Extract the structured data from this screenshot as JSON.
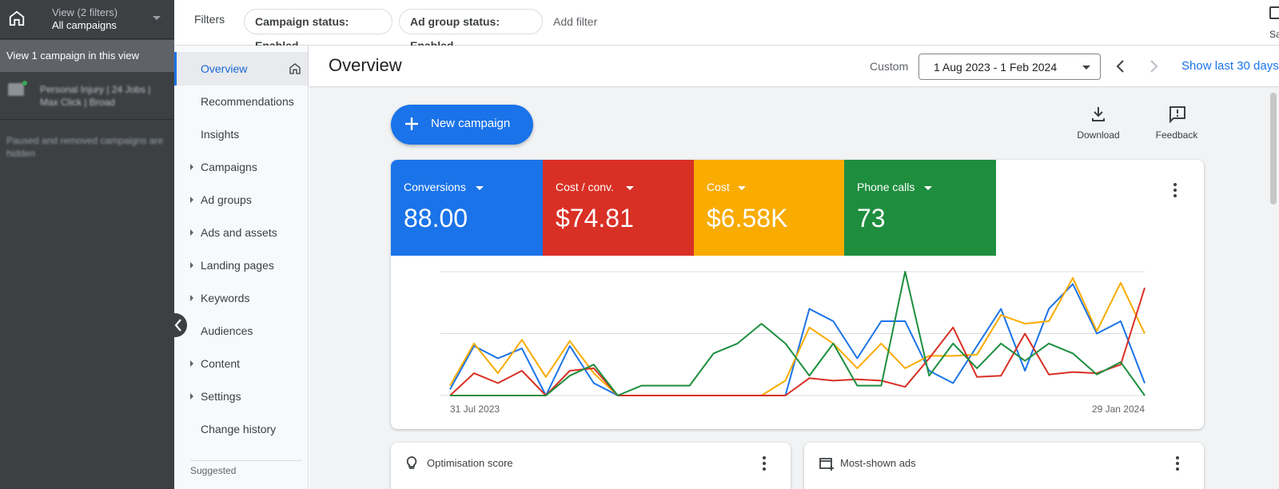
{
  "account": {
    "view_label": "View (2 filters)",
    "scope_label": "All campaigns",
    "banner": "View 1 campaign in this view",
    "campaign_name": "Personal Injury | 24 Jobs | Max Click | Broad",
    "hidden_note": "Paused and removed campaigns are hidden"
  },
  "filters": {
    "label": "Filters",
    "chips": [
      "Campaign status: Enabled",
      "Ad group status: Enabled"
    ],
    "add_filter": "Add filter",
    "save_label": "Sa"
  },
  "nav": {
    "items": [
      {
        "label": "Overview",
        "active": true,
        "expandable": false
      },
      {
        "label": "Recommendations",
        "active": false,
        "expandable": false
      },
      {
        "label": "Insights",
        "active": false,
        "expandable": false
      },
      {
        "label": "Campaigns",
        "active": false,
        "expandable": true
      },
      {
        "label": "Ad groups",
        "active": false,
        "expandable": true
      },
      {
        "label": "Ads and assets",
        "active": false,
        "expandable": true
      },
      {
        "label": "Landing pages",
        "active": false,
        "expandable": true
      },
      {
        "label": "Keywords",
        "active": false,
        "expandable": true
      },
      {
        "label": "Audiences",
        "active": false,
        "expandable": false
      },
      {
        "label": "Content",
        "active": false,
        "expandable": true
      },
      {
        "label": "Settings",
        "active": false,
        "expandable": true
      },
      {
        "label": "Change history",
        "active": false,
        "expandable": false
      }
    ],
    "suggested_label": "Suggested"
  },
  "header": {
    "title": "Overview",
    "range_type": "Custom",
    "date_range": "1 Aug 2023 - 1 Feb 2024",
    "show_last": "Show last 30 days"
  },
  "toolbar": {
    "new_campaign": "New campaign",
    "download": "Download",
    "feedback": "Feedback"
  },
  "metrics": [
    {
      "name": "Conversions",
      "value": "88.00",
      "color": "#1a73e8"
    },
    {
      "name": "Cost / conv.",
      "value": "$74.81",
      "color": "#d93025"
    },
    {
      "name": "Cost",
      "value": "$6.58K",
      "color": "#f9ab00"
    },
    {
      "name": "Phone calls",
      "value": "73",
      "color": "#1e8e3e"
    }
  ],
  "chart_data": {
    "type": "line",
    "x_start_label": "31 Jul 2023",
    "x_end_label": "29 Jan 2024",
    "ylim": [
      0,
      100
    ],
    "grid": true,
    "series": [
      {
        "color": "#1a73e8",
        "values": [
          5,
          40,
          30,
          38,
          0,
          40,
          10,
          0,
          0,
          0,
          0,
          0,
          0,
          0,
          0,
          70,
          60,
          30,
          60,
          60,
          20,
          10,
          40,
          70,
          20,
          70,
          90,
          50,
          60,
          10
        ]
      },
      {
        "color": "#f9ab00",
        "values": [
          8,
          42,
          18,
          45,
          15,
          44,
          18,
          0,
          0,
          0,
          0,
          0,
          0,
          0,
          12,
          55,
          42,
          22,
          42,
          22,
          32,
          32,
          33,
          65,
          58,
          60,
          95,
          52,
          91,
          50
        ]
      },
      {
        "color": "#d93025",
        "values": [
          0,
          18,
          10,
          20,
          0,
          20,
          22,
          0,
          0,
          0,
          0,
          0,
          0,
          0,
          0,
          14,
          12,
          13,
          12,
          7,
          30,
          55,
          15,
          16,
          50,
          17,
          19,
          18,
          25,
          87
        ]
      },
      {
        "color": "#1e8e3e",
        "values": [
          0,
          0,
          0,
          0,
          0,
          16,
          25,
          0,
          8,
          8,
          8,
          34,
          42,
          58,
          42,
          16,
          42,
          8,
          8,
          100,
          16,
          42,
          22,
          42,
          28,
          42,
          34,
          17,
          27,
          0
        ]
      }
    ]
  },
  "cards": {
    "optimisation": "Optimisation score",
    "most_shown": "Most-shown ads"
  }
}
